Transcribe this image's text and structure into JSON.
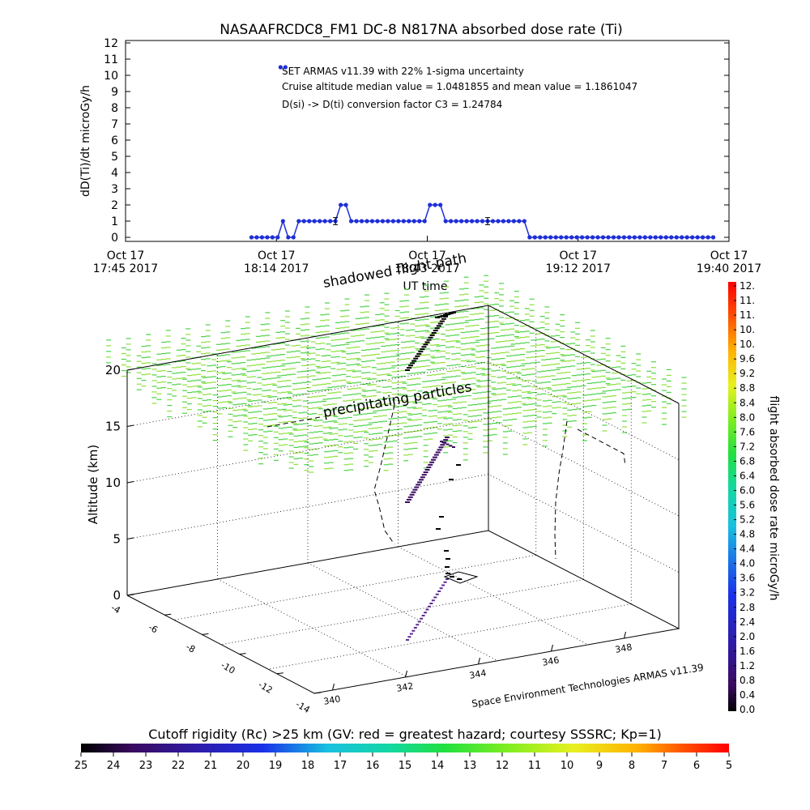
{
  "chart_data": [
    {
      "type": "line",
      "title": "NASAAFRCDC8_FM1 DC-8   N817NA absorbed dose rate (Ti)",
      "ylabel": "dD(Ti)/dt microGy/h",
      "xlabel": "UT time",
      "ylim": [
        0,
        12
      ],
      "yticks": [
        "0",
        "1",
        "2",
        "3",
        "4",
        "5",
        "6",
        "7",
        "8",
        "9",
        "10",
        "11",
        "12"
      ],
      "xlim": [
        "17:45",
        "19:40"
      ],
      "xticks": [
        {
          "line1": "Oct 17",
          "line2": "17:45 2017"
        },
        {
          "line1": "Oct 17",
          "line2": "18:14 2017"
        },
        {
          "line1": "Oct 17",
          "line2": "18:43 2017"
        },
        {
          "line1": "Oct 17",
          "line2": "19:12 2017"
        },
        {
          "line1": "Oct 17",
          "line2": "19:40 2017"
        }
      ],
      "annotations": [
        "SET ARMAS v11.39 with 22% 1-sigma uncertainty",
        "Cruise altitude median value = 1.0481855 and mean value = 1.1861047",
        "D(si) -> D(ti) conversion factor C3 = 1.24784"
      ],
      "series": [
        {
          "color": "#1f2fd6",
          "x": [
            "18:09",
            "18:10",
            "18:11",
            "18:12",
            "18:13",
            "18:14",
            "18:15",
            "18:16",
            "18:17",
            "18:18",
            "18:19",
            "18:20",
            "18:21",
            "18:22",
            "18:23",
            "18:24",
            "18:25",
            "18:26",
            "18:27",
            "18:28",
            "18:29",
            "18:30",
            "18:31",
            "18:32",
            "18:33",
            "18:34",
            "18:35",
            "18:36",
            "18:37",
            "18:38",
            "18:39",
            "18:40",
            "18:41",
            "18:42",
            "18:43",
            "18:44",
            "18:45",
            "18:46",
            "18:47",
            "18:48",
            "18:49",
            "18:50",
            "18:51",
            "18:52",
            "18:53",
            "18:54",
            "18:55",
            "18:56",
            "18:57",
            "18:58",
            "18:59",
            "19:00",
            "19:01",
            "19:02",
            "19:03",
            "19:04",
            "19:05",
            "19:06",
            "19:07",
            "19:08",
            "19:09",
            "19:10",
            "19:11",
            "19:12",
            "19:13",
            "19:14",
            "19:15",
            "19:16",
            "19:17",
            "19:18",
            "19:19",
            "19:20",
            "19:21",
            "19:22",
            "19:23",
            "19:24",
            "19:25",
            "19:26",
            "19:27",
            "19:28",
            "19:29",
            "19:30",
            "19:31",
            "19:32",
            "19:33",
            "19:34",
            "19:35",
            "19:36",
            "19:37"
          ],
          "values": [
            0,
            0,
            0,
            0,
            0,
            0,
            1,
            0,
            0,
            1,
            1,
            1,
            1,
            1,
            1,
            1,
            1,
            2,
            2,
            1,
            1,
            1,
            1,
            1,
            1,
            1,
            1,
            1,
            1,
            1,
            1,
            1,
            1,
            1,
            2,
            2,
            2,
            1,
            1,
            1,
            1,
            1,
            1,
            1,
            1,
            1,
            1,
            1,
            1,
            1,
            1,
            1,
            1,
            0,
            0,
            0,
            0,
            0,
            0,
            0,
            0,
            0,
            0,
            0,
            0,
            0,
            0,
            0,
            0,
            0,
            0,
            0,
            0,
            0,
            0,
            0,
            0,
            0,
            0,
            0,
            0,
            0,
            0,
            0,
            0,
            0,
            0,
            0,
            0
          ],
          "error_bars": [
            {
              "x": "18:25",
              "y": 1,
              "err": 0.22
            },
            {
              "x": "18:54",
              "y": 1,
              "err": 0.22
            }
          ],
          "outlier": {
            "x": "18:15",
            "y": 10.5
          }
        }
      ]
    },
    {
      "type": "scatter",
      "subtype": "3d-flight-path",
      "zlabel": "Altitude (km)",
      "zticks": [
        "0",
        "5",
        "10",
        "15",
        "20"
      ],
      "lat_ticks": [
        "-4",
        "-6",
        "-8",
        "-10",
        "-12",
        "-14"
      ],
      "lon_ticks": [
        "340",
        "342",
        "344",
        "346",
        "348"
      ],
      "labels": [
        "shadowed flight path",
        "precipitating particles"
      ],
      "credit": "Space Environment Technologies ARMAS v11.39",
      "colorbar": {
        "label": "flight absorbed dose rate microGy/h",
        "ticks": [
          "0.0",
          "0.4",
          "0.8",
          "1.2",
          "1.6",
          "2.0",
          "2.4",
          "2.8",
          "3.2",
          "3.6",
          "4.0",
          "4.4",
          "4.8",
          "5.2",
          "5.6",
          "6.0",
          "6.4",
          "6.8",
          "7.2",
          "7.6",
          "8.0",
          "8.4",
          "8.8",
          "9.2",
          "9.6",
          "10.",
          "10.",
          "11.",
          "11.",
          "12."
        ]
      }
    },
    {
      "type": "heatmap",
      "subtype": "colorbar",
      "title": "Cutoff rigidity (Rc) >25 km (GV: red = greatest hazard; courtesy SSSRC; Kp=1)",
      "ticks": [
        "25",
        "24",
        "23",
        "22",
        "21",
        "20",
        "19",
        "18",
        "17",
        "16",
        "15",
        "14",
        "13",
        "12",
        "11",
        "10",
        "9",
        "8",
        "7",
        "6",
        "5"
      ]
    }
  ]
}
